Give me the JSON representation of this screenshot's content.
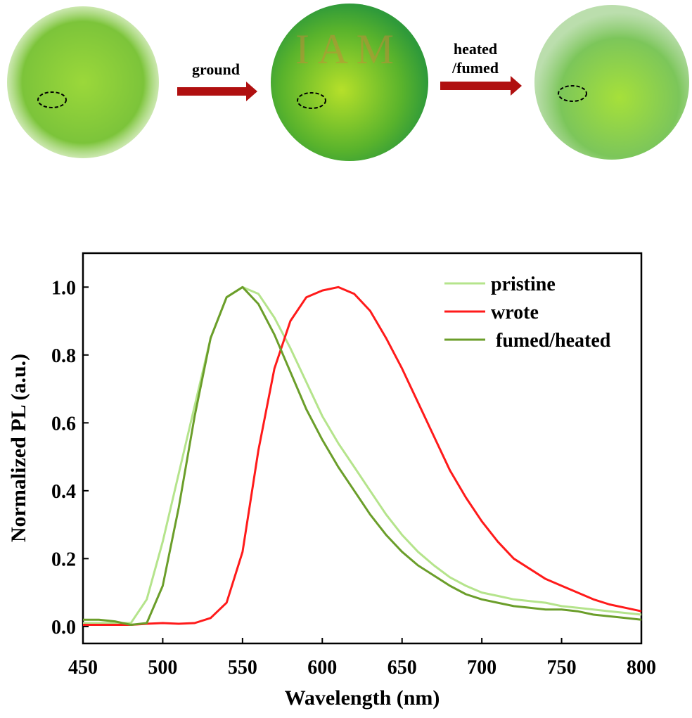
{
  "top_panel": {
    "arrow_1_label": "ground",
    "arrow_2_label_lines": [
      "heated",
      "/fumed"
    ],
    "written_text": "I A M"
  },
  "chart_data": {
    "type": "line",
    "x_label": "Wavelength (nm)",
    "y_label": "Normalized PL (a.u.)",
    "x": [
      450,
      460,
      470,
      480,
      490,
      500,
      510,
      520,
      530,
      540,
      550,
      560,
      570,
      580,
      590,
      600,
      610,
      620,
      630,
      640,
      650,
      660,
      670,
      680,
      690,
      700,
      710,
      720,
      730,
      740,
      750,
      760,
      770,
      780,
      790,
      800
    ],
    "series": [
      {
        "name": "pristine",
        "color": "#b5e48c",
        "values": [
          0.01,
          0.01,
          0.01,
          0.01,
          0.08,
          0.25,
          0.45,
          0.65,
          0.85,
          0.97,
          1.0,
          0.98,
          0.91,
          0.82,
          0.72,
          0.62,
          0.54,
          0.47,
          0.4,
          0.33,
          0.27,
          0.22,
          0.18,
          0.145,
          0.12,
          0.1,
          0.09,
          0.08,
          0.075,
          0.07,
          0.06,
          0.055,
          0.05,
          0.045,
          0.04,
          0.035
        ]
      },
      {
        "name": "wrote",
        "color": "#ff1a1a",
        "values": [
          0.005,
          0.005,
          0.005,
          0.005,
          0.008,
          0.01,
          0.008,
          0.01,
          0.025,
          0.07,
          0.22,
          0.52,
          0.76,
          0.9,
          0.97,
          0.99,
          1.0,
          0.98,
          0.93,
          0.85,
          0.76,
          0.66,
          0.56,
          0.46,
          0.38,
          0.31,
          0.25,
          0.2,
          0.17,
          0.14,
          0.12,
          0.1,
          0.08,
          0.065,
          0.055,
          0.045
        ]
      },
      {
        "name": " fumed/heated",
        "color": "#6b9e2a",
        "values": [
          0.02,
          0.02,
          0.015,
          0.005,
          0.01,
          0.12,
          0.35,
          0.62,
          0.85,
          0.97,
          1.0,
          0.95,
          0.86,
          0.75,
          0.64,
          0.55,
          0.47,
          0.4,
          0.33,
          0.27,
          0.22,
          0.18,
          0.15,
          0.12,
          0.095,
          0.08,
          0.07,
          0.06,
          0.055,
          0.05,
          0.05,
          0.045,
          0.035,
          0.03,
          0.025,
          0.02
        ]
      }
    ],
    "xlim": [
      450,
      800
    ],
    "xticks": [
      450,
      500,
      550,
      600,
      650,
      700,
      750,
      800
    ],
    "ylim": [
      -0.05,
      1.1
    ],
    "yticks": [
      {
        "value": 0,
        "label": "0.0"
      },
      0.2,
      0.4,
      0.6,
      0.8,
      {
        "value": 1,
        "label": "1.0"
      }
    ],
    "legend": "upper right"
  }
}
